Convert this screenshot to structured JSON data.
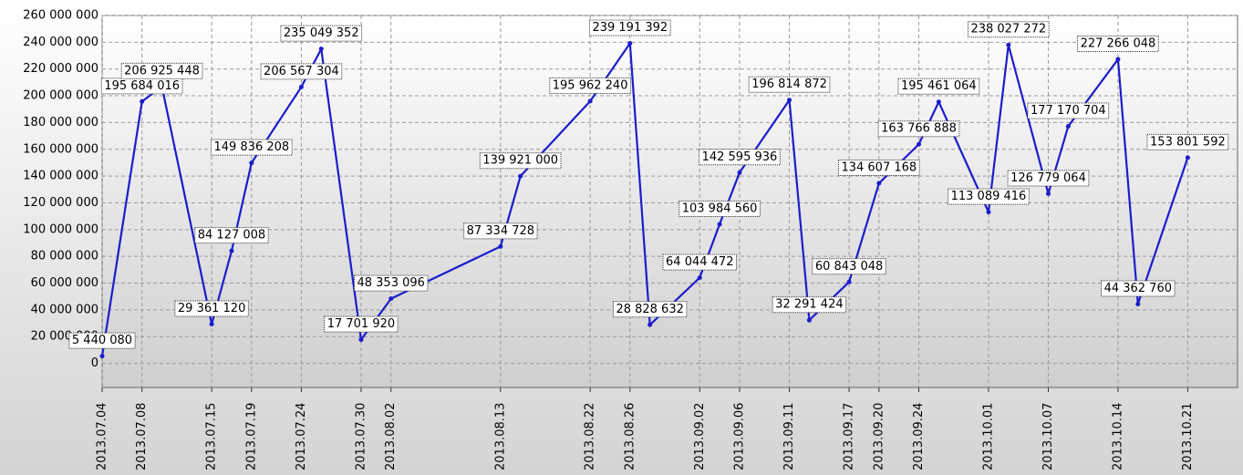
{
  "chart_data": {
    "type": "line",
    "x": [
      "2013.07.04",
      "2013.07.08",
      "2013.07.10",
      "2013.07.15",
      "2013.07.17",
      "2013.07.19",
      "2013.07.24",
      "2013.07.26",
      "2013.07.30",
      "2013.08.02",
      "2013.08.13",
      "2013.08.15",
      "2013.08.22",
      "2013.08.26",
      "2013.08.28",
      "2013.09.02",
      "2013.09.04",
      "2013.09.06",
      "2013.09.11",
      "2013.09.13",
      "2013.09.17",
      "2013.09.20",
      "2013.09.24",
      "2013.09.26",
      "2013.10.01",
      "2013.10.03",
      "2013.10.07",
      "2013.10.09",
      "2013.10.14",
      "2013.10.16",
      "2013.10.21"
    ],
    "series": [
      {
        "color": "#1c1ccc",
        "values": [
          5440080,
          195684016,
          206925448,
          29361120,
          84127008,
          149836208,
          206567304,
          235049352,
          17701920,
          48353096,
          87334728,
          139921000,
          195962240,
          239191392,
          28828632,
          64044472,
          103984560,
          142595936,
          196814872,
          32291424,
          60843048,
          134607168,
          163766888,
          195461064,
          113089416,
          238027272,
          126779064,
          177170704,
          227266048,
          44362760,
          153801592
        ],
        "value_labels": [
          "5 440 080",
          "195 684 016",
          "206 925 448",
          "29 361 120",
          "84 127 008",
          "149 836 208",
          "206 567 304",
          "235 049 352",
          "17 701 920",
          "48 353 096",
          "87 334 728",
          "139 921 000",
          "195 962 240",
          "239 191 392",
          "28 828 632",
          "64 044 472",
          "103 984 560",
          "142 595 936",
          "196 814 872",
          "32 291 424",
          "60 843 048",
          "134 607 168",
          "163 766 888",
          "195 461 064",
          "113 089 416",
          "238 027 272",
          "126 779 064",
          "177 170 704",
          "227 266 048",
          "44 362 760",
          "153 801 592"
        ]
      }
    ],
    "xlim": [
      "2013.07.04",
      "2013.10.26"
    ],
    "xticks": [
      "2013.07.04",
      "2013.07.08",
      "2013.07.15",
      "2013.07.19",
      "2013.07.24",
      "2013.07.30",
      "2013.08.02",
      "2013.08.13",
      "2013.08.22",
      "2013.08.26",
      "2013.09.02",
      "2013.09.06",
      "2013.09.11",
      "2013.09.17",
      "2013.09.20",
      "2013.09.24",
      "2013.10.01",
      "2013.10.07",
      "2013.10.14",
      "2013.10.21"
    ],
    "ylim": [
      -18000000,
      260000000
    ],
    "yticks": [
      {
        "value": 0,
        "label": "0"
      },
      {
        "value": 20000000,
        "label": "20 000 000"
      },
      {
        "value": 40000000,
        "label": "40 000 000"
      },
      {
        "value": 60000000,
        "label": "60 000 000"
      },
      {
        "value": 80000000,
        "label": "80 000 000"
      },
      {
        "value": 100000000,
        "label": "100 000 000"
      },
      {
        "value": 120000000,
        "label": "120 000 000"
      },
      {
        "value": 140000000,
        "label": "140 000 000"
      },
      {
        "value": 160000000,
        "label": "160 000 000"
      },
      {
        "value": 180000000,
        "label": "180 000 000"
      },
      {
        "value": 200000000,
        "label": "200 000 000"
      },
      {
        "value": 220000000,
        "label": "220 000 000"
      },
      {
        "value": 240000000,
        "label": "240 000 000"
      },
      {
        "value": 260000000,
        "label": "260 000 000"
      }
    ],
    "grid": true
  }
}
